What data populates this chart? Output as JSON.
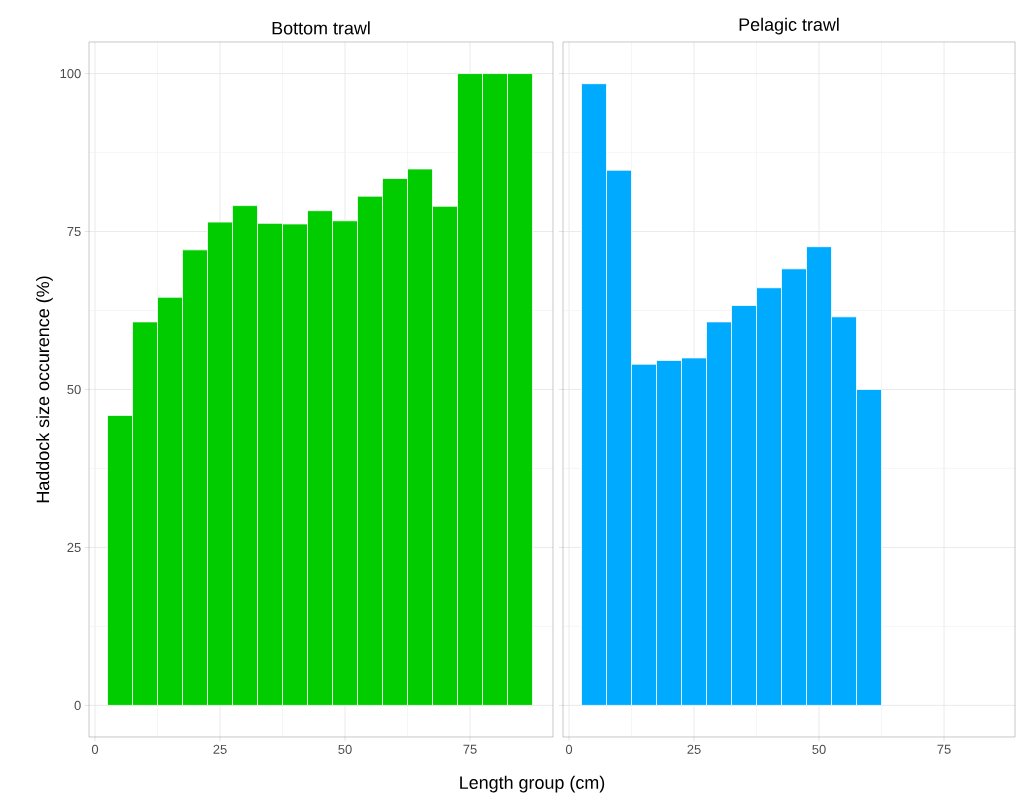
{
  "chart_data": [
    {
      "type": "bar",
      "title": "Bottom trawl",
      "ylabel": "Haddock size occurence (%)",
      "x": [
        5,
        10,
        15,
        20,
        25,
        30,
        35,
        40,
        45,
        50,
        55,
        60,
        65,
        70,
        75,
        80,
        85
      ],
      "values": [
        45.9,
        60.7,
        64.6,
        72.1,
        76.5,
        79.1,
        76.3,
        76.2,
        78.3,
        76.7,
        80.6,
        83.4,
        84.9,
        79.0,
        100,
        100,
        100
      ],
      "color": "#00cc00",
      "xlim": [
        -1.2,
        91.6
      ],
      "ylim": [
        -5,
        105
      ],
      "xticks": [
        0,
        25,
        50,
        75
      ],
      "yticks": [
        0,
        25,
        50,
        75,
        100
      ],
      "grid": true
    },
    {
      "type": "bar",
      "title": "Pelagic trawl",
      "xlabel": "Length group (cm)",
      "x": [
        5,
        10,
        15,
        20,
        25,
        30,
        35,
        40,
        45,
        50,
        55,
        60
      ],
      "values": [
        98.4,
        84.7,
        54.0,
        54.6,
        55.0,
        60.7,
        63.3,
        66.1,
        69.1,
        72.6,
        61.5,
        50.0
      ],
      "color": "#00aaff",
      "xlim": [
        -1.2,
        89.2
      ],
      "ylim": [
        -5,
        105
      ],
      "xticks": [
        0,
        25,
        50,
        75
      ],
      "yticks": [
        0,
        25,
        50,
        75,
        100
      ],
      "grid": true,
      "tick_labels": "x"
    }
  ]
}
